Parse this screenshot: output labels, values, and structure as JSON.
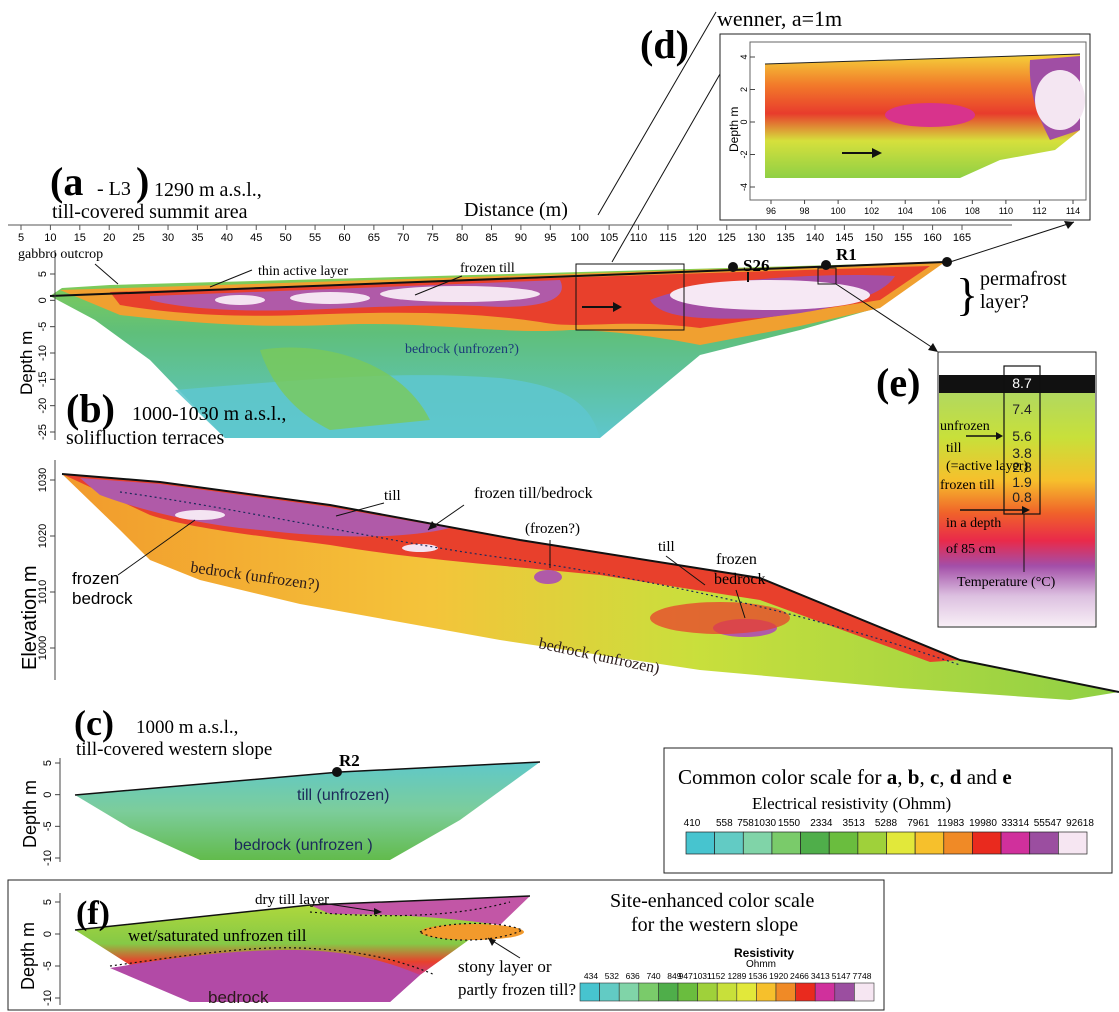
{
  "panel_a": {
    "letter": "(a",
    "sub": "- L3",
    "close": ")",
    "heading_line1": "1290 m a.s.l.,",
    "heading_line2": "till-covered summit area",
    "distance_label": "Distance (m)",
    "distance_ticks": [
      "5",
      "10",
      "15",
      "20",
      "25",
      "30",
      "35",
      "40",
      "45",
      "50",
      "55",
      "60",
      "65",
      "70",
      "75",
      "80",
      "85",
      "90",
      "95",
      "100",
      "105",
      "110",
      "115",
      "120",
      "125",
      "130",
      "135",
      "140",
      "145",
      "150",
      "155",
      "160",
      "165"
    ],
    "depth_label": "Depth m",
    "depth_ticks": [
      "5",
      "0",
      "-5",
      "-10",
      "-15",
      "-20",
      "-25"
    ],
    "annotations": {
      "gabbro": "gabbro outcrop",
      "thin_active": "thin active layer",
      "frozen_till": "frozen till",
      "bedrock": "bedrock (unfrozen?)",
      "s26": "S26",
      "r1": "R1",
      "permafrost_line1": "permafrost",
      "permafrost_line2": "layer?",
      "brace": "}"
    }
  },
  "panel_b": {
    "letter": "(b)",
    "heading_line1": "1000-1030 m a.s.l.,",
    "heading_line2": "solifluction terraces",
    "elev_label": "Elevation m",
    "elev_ticks": [
      "1030",
      "1020",
      "1010",
      "1000"
    ],
    "annotations": {
      "till1": "till",
      "frozen_till_bedrock": "frozen till/bedrock",
      "frozen_q": "(frozen?)",
      "till2": "till",
      "frozen_bedrock_left_1": "frozen",
      "frozen_bedrock_left_2": "bedrock",
      "bedrock_unfrozen_q": "bedrock (unfrozen?)",
      "frozen_bedrock_right_1": "frozen",
      "frozen_bedrock_right_2": "bedrock",
      "bedrock_unfrozen": "bedrock (unfrozen)"
    }
  },
  "panel_c": {
    "letter": "(c)",
    "heading_line1": "1000 m a.s.l.,",
    "heading_line2": "till-covered western slope",
    "depth_label": "Depth m",
    "depth_ticks": [
      "5",
      "0",
      "-5",
      "-10"
    ],
    "annotations": {
      "r2": "R2",
      "till_unfrozen": "till (unfrozen)",
      "bedrock_unfrozen": "bedrock (unfrozen  )"
    }
  },
  "panel_d": {
    "letter": "(d)",
    "heading": "wenner, a=1m",
    "depth_label": "Depth m",
    "y_ticks": [
      "4",
      "2",
      "0",
      "-2",
      "-4"
    ],
    "x_ticks": [
      "96",
      "98",
      "100",
      "102",
      "104",
      "106",
      "108",
      "110",
      "112",
      "114"
    ]
  },
  "panel_e": {
    "letter": "(e)",
    "temps": [
      "8.7",
      "7.4",
      "5.6",
      "3.8",
      "2.8",
      "1.9",
      "0.8"
    ],
    "label_unfrozen_1": "unfrozen",
    "label_unfrozen_2": "till",
    "label_unfrozen_3": "(=active layer)",
    "label_frozen_1": "frozen till",
    "label_frozen_2": "in a depth",
    "label_frozen_3": "of 85 cm",
    "temperature_label": "Temperature (°C)"
  },
  "panel_f": {
    "letter": "(f)",
    "depth_label": "Depth m",
    "depth_ticks": [
      "5",
      "0",
      "-5",
      "-10"
    ],
    "annotations": {
      "dry_till": "dry till layer",
      "wet_till": "wet/saturated unfrozen till",
      "stony_1": "stony layer or",
      "stony_2": "partly frozen till?",
      "bedrock": "bedrock"
    }
  },
  "common_scale": {
    "title_prefix": "Common color scale for ",
    "title_letters": [
      {
        "text": "a",
        "bold": true
      },
      {
        "text": ", ",
        "bold": false
      },
      {
        "text": "b",
        "bold": true
      },
      {
        "text": ", ",
        "bold": false
      },
      {
        "text": "c",
        "bold": true
      },
      {
        "text": ", ",
        "bold": false
      },
      {
        "text": "d",
        "bold": true
      },
      {
        "text": " and ",
        "bold": false
      },
      {
        "text": "e",
        "bold": true
      }
    ],
    "subtitle": "Electrical resistivity (Ohmm)",
    "values": [
      "410",
      "558",
      "7581030",
      "1550",
      "2334",
      "3513",
      "5288",
      "7961",
      "11983",
      "19980",
      "33314",
      "55547",
      "92618"
    ],
    "colors": [
      "#47c4cf",
      "#62cbc4",
      "#80d4a8",
      "#7acb6a",
      "#4fae4a",
      "#6abd3e",
      "#9fd13a",
      "#e2e83a",
      "#f6c02c",
      "#f08a26",
      "#e92a1e",
      "#d0309c",
      "#9b4ea0",
      "#f6e6f2"
    ]
  },
  "site_scale": {
    "title_line1": "Site-enhanced color scale",
    "title_line2": "for the western slope",
    "resistivity": "Resistivity",
    "unit": "Ohmm",
    "values": [
      "434",
      "532",
      "636",
      "740",
      "849",
      "9471031",
      "1152",
      "1289",
      "1536",
      "1920",
      "2466",
      "3413",
      "5147",
      "7748"
    ],
    "colors": [
      "#47c4cf",
      "#62cbc4",
      "#80d4a8",
      "#7acb6a",
      "#4fae4a",
      "#6abd3e",
      "#9fd13a",
      "#c8e03a",
      "#e2e83a",
      "#f6c02c",
      "#f08a26",
      "#e92a1e",
      "#d0309c",
      "#9b4ea0",
      "#f6e6f2"
    ]
  }
}
